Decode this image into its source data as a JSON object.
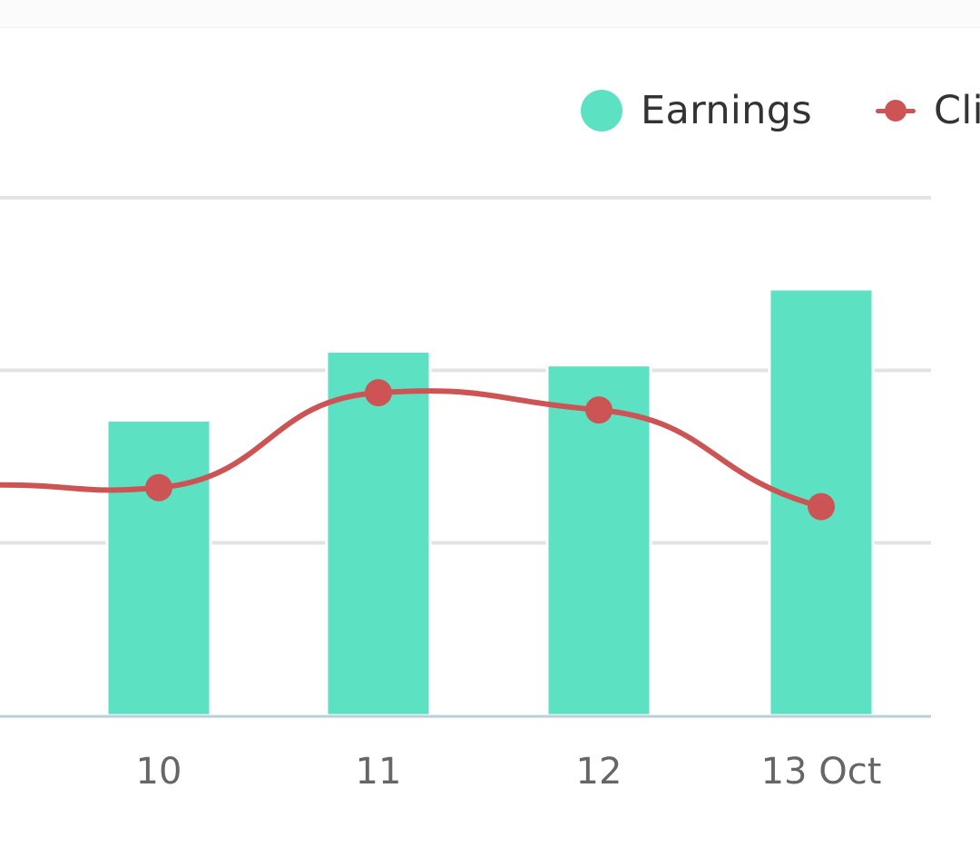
{
  "colors": {
    "earnings": "#5ce1c2",
    "clicks": "#cd5455",
    "grid": "#e3e3e3",
    "baseline": "#b9d0dc",
    "tick_text": "#666666",
    "legend_text": "#333333"
  },
  "legend": {
    "items": [
      {
        "label": "Earnings",
        "shape": "circle"
      },
      {
        "label": "Clic",
        "shape": "line-marker"
      }
    ]
  },
  "chart_data": {
    "type": "bar",
    "categories": [
      "10",
      "11",
      "12",
      "13 Oct"
    ],
    "series": [
      {
        "name": "Earnings",
        "type": "bar",
        "values": [
          1.71,
          2.11,
          2.03,
          2.47
        ]
      },
      {
        "name": "Clic",
        "type": "line",
        "values": [
          1.32,
          1.87,
          1.77,
          1.21
        ]
      }
    ],
    "ylim": [
      0,
      3
    ],
    "grid": true,
    "legend_position": "top-right"
  }
}
